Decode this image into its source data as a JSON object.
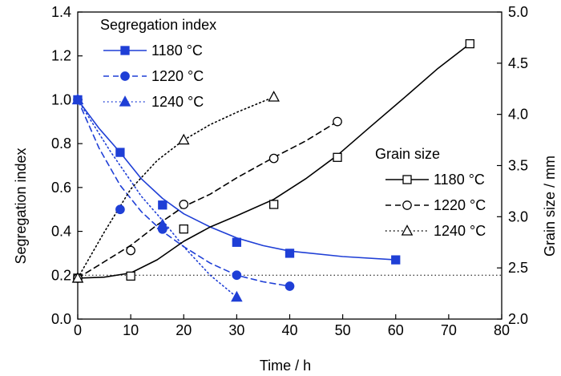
{
  "chart_data": {
    "type": "line",
    "x_axis": {
      "label": "Time / h",
      "range": [
        0,
        80
      ],
      "ticks": [
        0,
        10,
        20,
        30,
        40,
        50,
        60,
        70,
        80
      ]
    },
    "y_left": {
      "label": "Segregation index",
      "range": [
        0.0,
        1.4
      ],
      "ticks": [
        "0.0",
        "0.2",
        "0.4",
        "0.6",
        "0.8",
        "1.0",
        "1.2",
        "1.4"
      ]
    },
    "y_right": {
      "label": "Grain size / mm",
      "range": [
        2.0,
        5.0
      ],
      "ticks": [
        "2.0",
        "2.5",
        "3.0",
        "3.5",
        "4.0",
        "4.5",
        "5.0"
      ]
    },
    "reference_line": {
      "axis": "y_left",
      "value": 0.2,
      "style": "dotted"
    },
    "legend_segregation": {
      "title": "Segregation index",
      "entries": [
        {
          "label": "1180 °C",
          "marker": "square-filled",
          "dash": "solid"
        },
        {
          "label": "1220 °C",
          "marker": "circle-filled",
          "dash": "dashed"
        },
        {
          "label": "1240 °C",
          "marker": "triangle-filled",
          "dash": "dotted"
        }
      ]
    },
    "legend_grain": {
      "title": "Grain size",
      "entries": [
        {
          "label": "1180 °C",
          "marker": "square-open",
          "dash": "solid"
        },
        {
          "label": "1220 °C",
          "marker": "circle-open",
          "dash": "dashed"
        },
        {
          "label": "1240 °C",
          "marker": "triangle-open",
          "dash": "dotted"
        }
      ]
    },
    "series": [
      {
        "name": "1180 °C",
        "group": "Segregation index",
        "axis": "y_left",
        "color": "#1f3fd6",
        "marker": "square-filled",
        "dash": "solid",
        "points": [
          [
            0,
            1.0
          ],
          [
            8,
            0.76
          ],
          [
            16,
            0.52
          ],
          [
            30,
            0.35
          ],
          [
            40,
            0.3
          ],
          [
            60,
            0.27
          ]
        ],
        "curve": [
          [
            0,
            1.0
          ],
          [
            4,
            0.87
          ],
          [
            8,
            0.76
          ],
          [
            12,
            0.64
          ],
          [
            16,
            0.55
          ],
          [
            20,
            0.48
          ],
          [
            25,
            0.42
          ],
          [
            30,
            0.37
          ],
          [
            35,
            0.335
          ],
          [
            40,
            0.31
          ],
          [
            50,
            0.285
          ],
          [
            60,
            0.27
          ]
        ]
      },
      {
        "name": "1220 °C",
        "group": "Segregation index",
        "axis": "y_left",
        "color": "#1f3fd6",
        "marker": "circle-filled",
        "dash": "dashed",
        "points": [
          [
            0,
            1.0
          ],
          [
            8,
            0.5
          ],
          [
            16,
            0.41
          ],
          [
            30,
            0.2
          ],
          [
            40,
            0.15
          ]
        ],
        "curve": [
          [
            0,
            1.0
          ],
          [
            4,
            0.78
          ],
          [
            8,
            0.61
          ],
          [
            12,
            0.49
          ],
          [
            16,
            0.4
          ],
          [
            20,
            0.33
          ],
          [
            25,
            0.255
          ],
          [
            30,
            0.2
          ],
          [
            35,
            0.17
          ],
          [
            40,
            0.15
          ]
        ]
      },
      {
        "name": "1240 °C",
        "group": "Segregation index",
        "axis": "y_left",
        "color": "#1f3fd6",
        "marker": "triangle-filled",
        "dash": "dotted",
        "points": [
          [
            0,
            1.0
          ],
          [
            16,
            0.43
          ],
          [
            30,
            0.1
          ]
        ],
        "curve": [
          [
            0,
            1.0
          ],
          [
            6,
            0.77
          ],
          [
            12,
            0.56
          ],
          [
            16,
            0.45
          ],
          [
            20,
            0.33
          ],
          [
            25,
            0.2
          ],
          [
            30,
            0.1
          ]
        ]
      },
      {
        "name": "1180 °C",
        "group": "Grain size",
        "axis": "y_right",
        "color": "#000000",
        "marker": "square-open",
        "dash": "solid",
        "points": [
          [
            0,
            2.4
          ],
          [
            10,
            2.42
          ],
          [
            20,
            2.88
          ],
          [
            37,
            3.12
          ],
          [
            49,
            3.58
          ],
          [
            74,
            4.69
          ]
        ],
        "curve": [
          [
            0,
            2.4
          ],
          [
            5,
            2.41
          ],
          [
            10,
            2.45
          ],
          [
            15,
            2.58
          ],
          [
            20,
            2.76
          ],
          [
            25,
            2.9
          ],
          [
            30,
            3.01
          ],
          [
            37,
            3.17
          ],
          [
            43,
            3.37
          ],
          [
            49,
            3.6
          ],
          [
            55,
            3.87
          ],
          [
            62,
            4.18
          ],
          [
            68,
            4.45
          ],
          [
            74,
            4.69
          ]
        ]
      },
      {
        "name": "1220 °C",
        "group": "Grain size",
        "axis": "y_right",
        "color": "#000000",
        "marker": "circle-open",
        "dash": "dashed",
        "points": [
          [
            0,
            2.4
          ],
          [
            10,
            2.67
          ],
          [
            20,
            3.12
          ],
          [
            37,
            3.57
          ],
          [
            49,
            3.93
          ]
        ],
        "curve": [
          [
            0,
            2.4
          ],
          [
            5,
            2.56
          ],
          [
            10,
            2.72
          ],
          [
            15,
            2.92
          ],
          [
            20,
            3.1
          ],
          [
            25,
            3.22
          ],
          [
            30,
            3.38
          ],
          [
            37,
            3.58
          ],
          [
            43,
            3.74
          ],
          [
            49,
            3.93
          ]
        ]
      },
      {
        "name": "1240 °C",
        "group": "Grain size",
        "axis": "y_right",
        "color": "#000000",
        "marker": "triangle-open",
        "dash": "dotted",
        "points": [
          [
            0,
            2.4
          ],
          [
            20,
            3.75
          ],
          [
            37,
            4.17
          ]
        ],
        "curve": [
          [
            0,
            2.4
          ],
          [
            5,
            2.85
          ],
          [
            10,
            3.27
          ],
          [
            15,
            3.55
          ],
          [
            20,
            3.75
          ],
          [
            25,
            3.9
          ],
          [
            30,
            4.02
          ],
          [
            37,
            4.17
          ]
        ]
      }
    ]
  }
}
